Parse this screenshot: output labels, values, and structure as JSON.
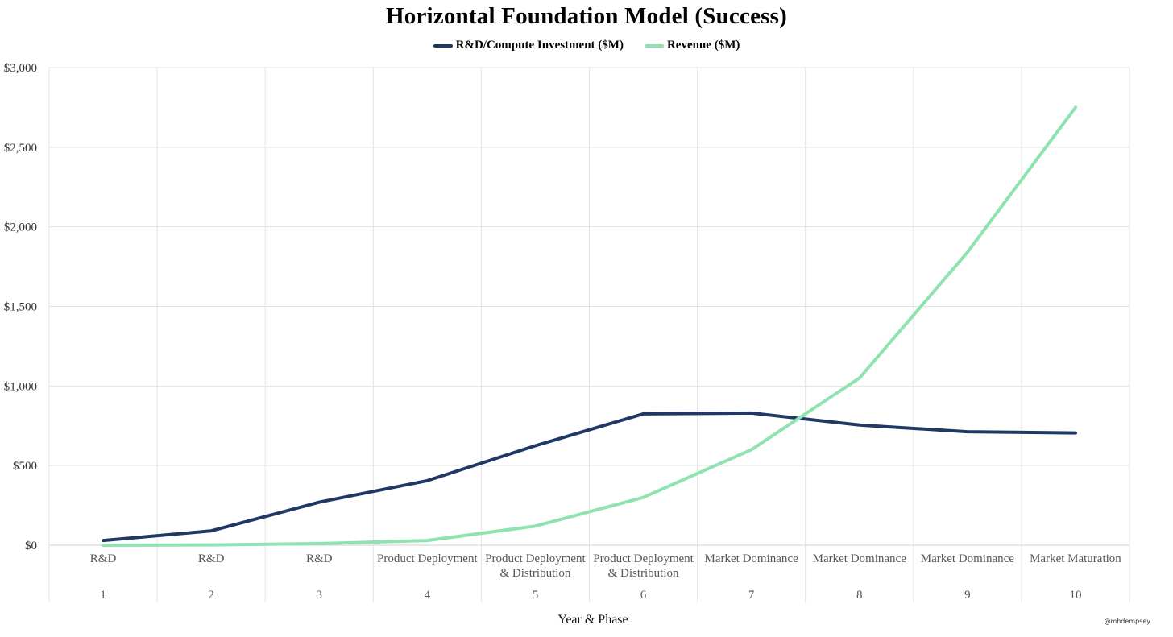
{
  "chart_data": {
    "type": "line",
    "title": "Horizontal Foundation Model (Success)",
    "xlabel": "Year & Phase",
    "ylabel": "",
    "ylim": [
      0,
      3000
    ],
    "y_ticks": [
      "$0",
      "$500",
      "$1,000",
      "$1,500",
      "$2,000",
      "$2,500",
      "$3,000"
    ],
    "y_tick_values": [
      0,
      500,
      1000,
      1500,
      2000,
      2500,
      3000
    ],
    "x": [
      1,
      2,
      3,
      4,
      5,
      6,
      7,
      8,
      9,
      10
    ],
    "phases": [
      [
        "R&D"
      ],
      [
        "R&D"
      ],
      [
        "R&D"
      ],
      [
        "Product Deployment"
      ],
      [
        "Product Deployment",
        "& Distribution"
      ],
      [
        "Product Deployment",
        "& Distribution"
      ],
      [
        "Market Dominance"
      ],
      [
        "Market Dominance"
      ],
      [
        "Market Dominance"
      ],
      [
        "Market Maturation"
      ]
    ],
    "grid": true,
    "legend_position": "top-center",
    "series": [
      {
        "name": "R&D/Compute Investment ($M)",
        "color": "#1f3864",
        "values": [
          30,
          90,
          270,
          405,
          625,
          825,
          830,
          755,
          713,
          705
        ]
      },
      {
        "name": "Revenue ($M)",
        "color": "#8fe3b0",
        "values": [
          0,
          2,
          10,
          30,
          120,
          300,
          600,
          1050,
          1840,
          2750
        ]
      }
    ]
  },
  "watermark": "@mhdempsey"
}
